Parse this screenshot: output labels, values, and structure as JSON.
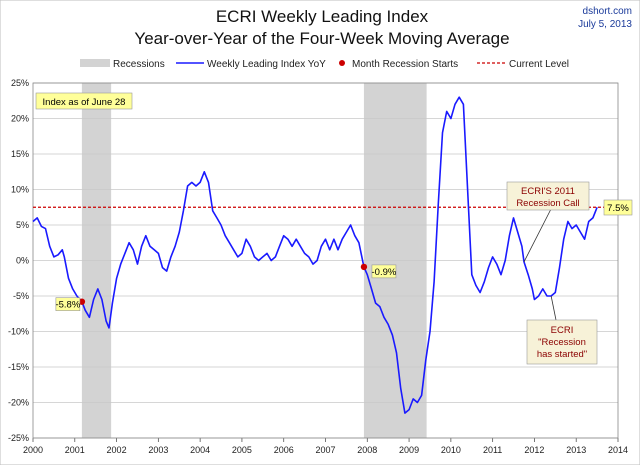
{
  "chart_data": {
    "type": "line",
    "title": "ECRI Weekly Leading Index",
    "subtitle": "Year-over-Year of the Four-Week Moving Average",
    "source": "dshort.com",
    "date": "July 5, 2013",
    "ylim": [
      -25,
      25
    ],
    "yticks": [
      25,
      20,
      15,
      10,
      5,
      0,
      -5,
      -10,
      -15,
      -20,
      -25
    ],
    "ytick_labels": [
      "25%",
      "20%",
      "15%",
      "10%",
      "5%",
      "0%",
      "-5%",
      "-10%",
      "-15%",
      "-20%",
      "-25%"
    ],
    "xlim": [
      2000,
      2014
    ],
    "xticks": [
      2000,
      2001,
      2002,
      2003,
      2004,
      2005,
      2006,
      2007,
      2008,
      2009,
      2010,
      2011,
      2012,
      2013,
      2014
    ],
    "xtick_labels": [
      "2000",
      "2001",
      "2002",
      "2003",
      "2004",
      "2005",
      "2006",
      "2007",
      "2008",
      "2009",
      "2010",
      "2011",
      "2012",
      "2013",
      "2014"
    ],
    "legend": [
      {
        "label": "Recessions",
        "kind": "band"
      },
      {
        "label": "Weekly Leading Index YoY",
        "kind": "line"
      },
      {
        "label": "Month Recession Starts",
        "kind": "dot"
      },
      {
        "label": "Current Level",
        "kind": "dashed"
      }
    ],
    "recessions": [
      [
        2001.17,
        2001.87
      ],
      [
        2007.92,
        2009.42
      ]
    ],
    "current_level": 7.5,
    "recession_starts": [
      {
        "x": 2001.17,
        "y": -5.8,
        "label": "-5.8%"
      },
      {
        "x": 2007.92,
        "y": -0.9,
        "label": "-0.9%"
      }
    ],
    "series": [
      {
        "name": "Weekly Leading Index YoY",
        "color": "#1a1aff",
        "x": [
          2000.0,
          2000.1,
          2000.2,
          2000.3,
          2000.4,
          2000.5,
          2000.6,
          2000.7,
          2000.75,
          2000.85,
          2000.95,
          2001.05,
          2001.17,
          2001.25,
          2001.35,
          2001.45,
          2001.55,
          2001.65,
          2001.75,
          2001.82,
          2001.9,
          2002.0,
          2002.1,
          2002.2,
          2002.3,
          2002.4,
          2002.5,
          2002.6,
          2002.7,
          2002.8,
          2002.9,
          2003.0,
          2003.1,
          2003.2,
          2003.3,
          2003.4,
          2003.5,
          2003.6,
          2003.7,
          2003.8,
          2003.9,
          2004.0,
          2004.1,
          2004.2,
          2004.3,
          2004.4,
          2004.5,
          2004.6,
          2004.7,
          2004.8,
          2004.9,
          2005.0,
          2005.1,
          2005.2,
          2005.3,
          2005.4,
          2005.5,
          2005.6,
          2005.7,
          2005.8,
          2005.9,
          2006.0,
          2006.1,
          2006.2,
          2006.3,
          2006.4,
          2006.5,
          2006.6,
          2006.7,
          2006.8,
          2006.9,
          2007.0,
          2007.1,
          2007.2,
          2007.3,
          2007.4,
          2007.5,
          2007.6,
          2007.7,
          2007.8,
          2007.92,
          2008.0,
          2008.1,
          2008.2,
          2008.3,
          2008.4,
          2008.5,
          2008.6,
          2008.7,
          2008.8,
          2008.9,
          2009.0,
          2009.1,
          2009.2,
          2009.3,
          2009.4,
          2009.5,
          2009.6,
          2009.7,
          2009.8,
          2009.9,
          2010.0,
          2010.1,
          2010.2,
          2010.3,
          2010.4,
          2010.5,
          2010.6,
          2010.7,
          2010.8,
          2010.9,
          2011.0,
          2011.1,
          2011.2,
          2011.3,
          2011.4,
          2011.5,
          2011.6,
          2011.7,
          2011.75,
          2011.85,
          2011.95,
          2012.0,
          2012.1,
          2012.2,
          2012.3,
          2012.4,
          2012.5,
          2012.6,
          2012.7,
          2012.8,
          2012.9,
          2013.0,
          2013.1,
          2013.2,
          2013.3,
          2013.4,
          2013.5
        ],
        "y": [
          5.5,
          6.0,
          4.8,
          4.5,
          2.0,
          0.5,
          0.8,
          1.5,
          0.5,
          -2.5,
          -4.0,
          -5.0,
          -5.8,
          -7.0,
          -8.0,
          -5.5,
          -4.0,
          -5.5,
          -8.5,
          -9.5,
          -6.0,
          -2.5,
          -0.5,
          1.0,
          2.5,
          1.5,
          -0.5,
          2.0,
          3.5,
          2.0,
          1.5,
          1.0,
          -1.0,
          -1.5,
          0.5,
          2.0,
          4.0,
          7.0,
          10.5,
          11.0,
          10.5,
          11.0,
          12.5,
          11.0,
          7.0,
          6.0,
          5.0,
          3.5,
          2.5,
          1.5,
          0.5,
          1.0,
          3.0,
          2.0,
          0.5,
          0.0,
          0.5,
          1.0,
          0.0,
          0.5,
          2.0,
          3.5,
          3.0,
          2.0,
          3.0,
          2.0,
          1.0,
          0.5,
          -0.5,
          0.0,
          2.0,
          3.0,
          1.5,
          3.0,
          1.5,
          3.0,
          4.0,
          5.0,
          3.5,
          2.5,
          -0.9,
          -2.0,
          -4.0,
          -6.0,
          -6.5,
          -8.0,
          -9.0,
          -10.5,
          -13.0,
          -18.0,
          -21.5,
          -21.0,
          -19.5,
          -20.0,
          -19.0,
          -14.0,
          -10.0,
          -3.0,
          8.0,
          18.0,
          21.0,
          20.0,
          22.0,
          23.0,
          22.0,
          10.0,
          -2.0,
          -3.5,
          -4.5,
          -3.0,
          -1.0,
          0.5,
          -0.5,
          -2.0,
          0.0,
          3.5,
          6.0,
          4.0,
          2.0,
          -0.2,
          -2.0,
          -4.0,
          -5.5,
          -5.0,
          -4.0,
          -5.0,
          -5.0,
          -4.5,
          -1.0,
          3.0,
          5.5,
          4.5,
          5.0,
          4.0,
          3.0,
          5.5,
          6.0,
          7.5
        ]
      }
    ],
    "annotations": [
      {
        "text": "Index as of June 28",
        "style": "yellow-box"
      },
      {
        "text": "7.5%",
        "style": "yellow-box"
      },
      {
        "text": [
          "ECRI'S 2011",
          "Recession Call"
        ],
        "style": "beige-box",
        "target_x": 2011.75,
        "target_y": -0.2
      },
      {
        "text": [
          "ECRI",
          "\"Recession",
          "has started\""
        ],
        "style": "beige-box",
        "target_x": 2012.4,
        "target_y": -5.0
      }
    ]
  }
}
